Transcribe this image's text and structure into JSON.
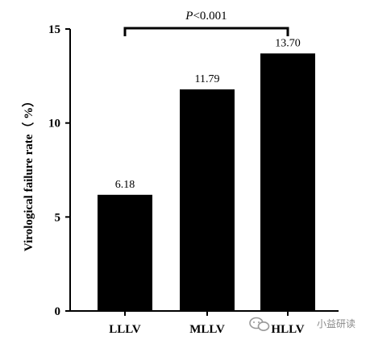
{
  "chart_data": {
    "type": "bar",
    "categories": [
      "LLLV",
      "MLLV",
      "HLLV"
    ],
    "values": [
      6.18,
      11.79,
      13.7
    ],
    "data_labels": [
      "6.18",
      "11.79",
      "13.70"
    ],
    "title": "",
    "xlabel": "",
    "ylabel": "Virological  failure rate（ %）",
    "ylim": [
      0,
      15
    ],
    "yticks": [
      0,
      5,
      10,
      15
    ],
    "grid": false,
    "bar_color": "#000000",
    "significance": {
      "from": "LLLV",
      "to": "HLLV",
      "p_prefix": "P",
      "p_suffix": "<0.001"
    }
  },
  "watermark": {
    "text": "小益研读"
  }
}
